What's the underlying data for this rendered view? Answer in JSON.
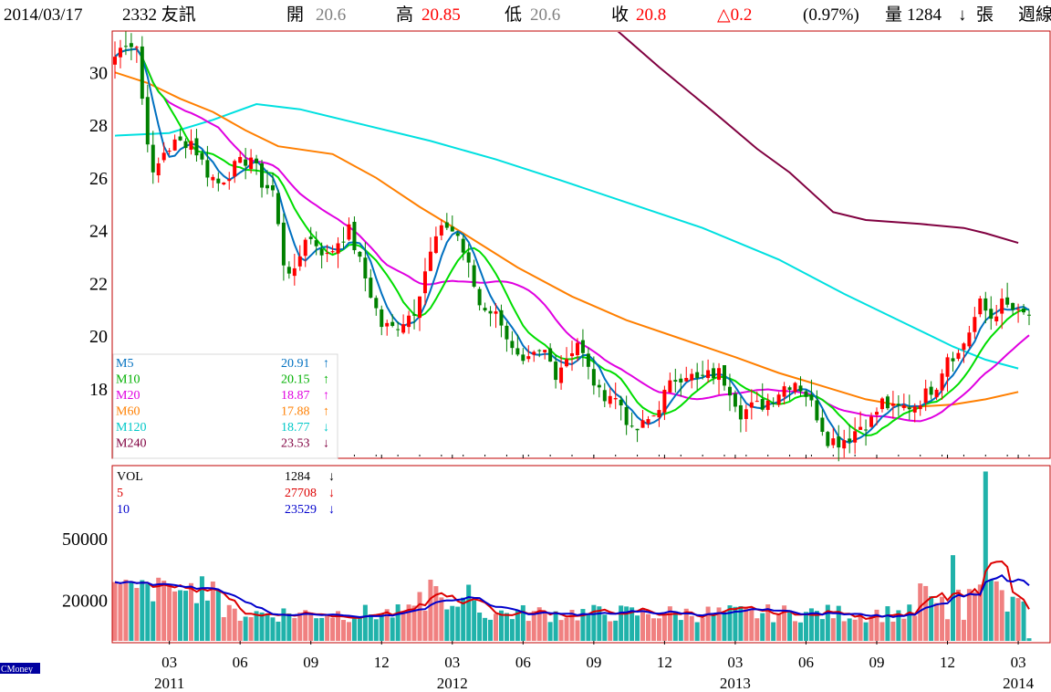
{
  "header": {
    "date": "2014/03/17",
    "stock": "2332 友訊",
    "open_label": "開",
    "open": "20.6",
    "high_label": "高",
    "high": "20.85",
    "low_label": "低",
    "low": "20.6",
    "close_label": "收",
    "close": "20.8",
    "change": "△0.2",
    "change_pct": "(0.97%)",
    "volume_label": "量",
    "volume": "1284",
    "volume_arrow": "↓",
    "unit": "張",
    "period": "週線"
  },
  "colors": {
    "up": "#ff0000",
    "down": "#008000",
    "m5": "#0070c0",
    "m10": "#00dd00",
    "m20": "#e000e0",
    "m60": "#ff7f00",
    "m120": "#00e0e0",
    "m240": "#800040",
    "vol_up": "#f08080",
    "vol_down": "#20b2aa",
    "vol5": "#dd0000",
    "vol10": "#0000cc"
  },
  "legend": [
    {
      "name": "M5",
      "value": "20.91",
      "arrow": "↑",
      "color": "#0070c0"
    },
    {
      "name": "M10",
      "value": "20.15",
      "arrow": "↑",
      "color": "#00b000"
    },
    {
      "name": "M20",
      "value": "18.87",
      "arrow": "↑",
      "color": "#e000e0"
    },
    {
      "name": "M60",
      "value": "17.88",
      "arrow": "↑",
      "color": "#ff7f00"
    },
    {
      "name": "M120",
      "value": "18.77",
      "arrow": "↓",
      "color": "#00c8c8"
    },
    {
      "name": "M240",
      "value": "23.53",
      "arrow": "↓",
      "color": "#800040"
    }
  ],
  "vol_legend": [
    {
      "name": "VOL",
      "value": "1284",
      "arrow": "↓",
      "color": "#000000"
    },
    {
      "name": "5",
      "value": "27708",
      "arrow": "↓",
      "color": "#dd0000"
    },
    {
      "name": "10",
      "value": "23529",
      "arrow": "↓",
      "color": "#0000cc"
    }
  ],
  "watermark": "CMoney",
  "chart_data": {
    "type": "candlestick",
    "price_yticks": [
      "30",
      "28",
      "26",
      "24",
      "22",
      "20",
      "18"
    ],
    "volume_yticks": [
      "50000",
      "20000"
    ],
    "month_ticks": [
      "03",
      "06",
      "09",
      "12",
      "03",
      "06",
      "09",
      "12",
      "03",
      "06",
      "09",
      "12",
      "03"
    ],
    "year_labels": [
      "2011",
      "2012",
      "2013",
      "2014"
    ],
    "price_ylim": [
      15.5,
      31.5
    ],
    "volume_ylim": [
      0,
      85000
    ],
    "weeks": 169,
    "price_anchors": [
      [
        0,
        30.6
      ],
      [
        2,
        31.2
      ],
      [
        4,
        31.0
      ],
      [
        5,
        29.0
      ],
      [
        7,
        26.0
      ],
      [
        9,
        27.0
      ],
      [
        11,
        27.3
      ],
      [
        14,
        27.4
      ],
      [
        17,
        26.2
      ],
      [
        19,
        25.8
      ],
      [
        22,
        26.4
      ],
      [
        25,
        26.8
      ],
      [
        27,
        25.8
      ],
      [
        29,
        25.5
      ],
      [
        31,
        22.8
      ],
      [
        33,
        22.3
      ],
      [
        35,
        23.8
      ],
      [
        37,
        23.5
      ],
      [
        39,
        23.0
      ],
      [
        41,
        23.6
      ],
      [
        43,
        24.0
      ],
      [
        45,
        22.8
      ],
      [
        47,
        21.6
      ],
      [
        49,
        20.4
      ],
      [
        51,
        20.3
      ],
      [
        53,
        20.6
      ],
      [
        55,
        21.0
      ],
      [
        57,
        22.5
      ],
      [
        59,
        23.7
      ],
      [
        61,
        24.2
      ],
      [
        63,
        23.8
      ],
      [
        65,
        22.6
      ],
      [
        67,
        21.2
      ],
      [
        69,
        21.0
      ],
      [
        71,
        20.6
      ],
      [
        73,
        19.4
      ],
      [
        75,
        18.8
      ],
      [
        77,
        19.2
      ],
      [
        79,
        19.4
      ],
      [
        81,
        18.6
      ],
      [
        83,
        19.2
      ],
      [
        85,
        19.8
      ],
      [
        87,
        18.7
      ],
      [
        89,
        17.8
      ],
      [
        91,
        17.8
      ],
      [
        93,
        17.4
      ],
      [
        95,
        16.3
      ],
      [
        97,
        16.6
      ],
      [
        99,
        17.0
      ],
      [
        101,
        17.8
      ],
      [
        103,
        18.4
      ],
      [
        105,
        18.6
      ],
      [
        107,
        18.3
      ],
      [
        109,
        18.5
      ],
      [
        111,
        18.6
      ],
      [
        113,
        18.0
      ],
      [
        115,
        17.1
      ],
      [
        117,
        17.3
      ],
      [
        119,
        17.4
      ],
      [
        121,
        17.7
      ],
      [
        123,
        18.1
      ],
      [
        125,
        18.3
      ],
      [
        127,
        17.8
      ],
      [
        129,
        17.0
      ],
      [
        131,
        16.1
      ],
      [
        133,
        16.0
      ],
      [
        135,
        16.2
      ],
      [
        137,
        16.6
      ],
      [
        139,
        16.8
      ],
      [
        141,
        17.5
      ],
      [
        143,
        17.2
      ],
      [
        145,
        17.3
      ],
      [
        147,
        17.4
      ],
      [
        149,
        17.8
      ],
      [
        151,
        18.2
      ],
      [
        153,
        19.3
      ],
      [
        155,
        19.3
      ],
      [
        157,
        20.2
      ],
      [
        159,
        21.2
      ],
      [
        161,
        20.7
      ],
      [
        163,
        21.2
      ],
      [
        165,
        21.0
      ],
      [
        166,
        20.8
      ]
    ],
    "ma_lines": [
      {
        "name": "M120",
        "points": [
          [
            0,
            27.6
          ],
          [
            10,
            27.7
          ],
          [
            18,
            28.2
          ],
          [
            26,
            28.8
          ],
          [
            34,
            28.6
          ],
          [
            44,
            28.1
          ],
          [
            58,
            27.4
          ],
          [
            70,
            26.7
          ],
          [
            82,
            25.9
          ],
          [
            95,
            25.0
          ],
          [
            108,
            24.1
          ],
          [
            122,
            22.9
          ],
          [
            134,
            21.6
          ],
          [
            146,
            20.4
          ],
          [
            154,
            19.6
          ],
          [
            160,
            19.1
          ],
          [
            166,
            18.77
          ]
        ]
      },
      {
        "name": "M240",
        "points": [
          [
            72,
            35.5
          ],
          [
            80,
            34.1
          ],
          [
            90,
            32.0
          ],
          [
            100,
            30.2
          ],
          [
            110,
            28.5
          ],
          [
            118,
            27.1
          ],
          [
            124,
            26.2
          ],
          [
            132,
            24.7
          ],
          [
            138,
            24.4
          ],
          [
            148,
            24.25
          ],
          [
            156,
            24.1
          ],
          [
            160,
            23.9
          ],
          [
            166,
            23.53
          ]
        ]
      },
      {
        "name": "M60",
        "points": [
          [
            0,
            30.0
          ],
          [
            6,
            29.6
          ],
          [
            12,
            29.0
          ],
          [
            18,
            28.5
          ],
          [
            24,
            27.8
          ],
          [
            30,
            27.2
          ],
          [
            40,
            26.9
          ],
          [
            48,
            26.0
          ],
          [
            56,
            24.9
          ],
          [
            64,
            23.9
          ],
          [
            74,
            22.6
          ],
          [
            84,
            21.5
          ],
          [
            94,
            20.6
          ],
          [
            104,
            19.9
          ],
          [
            114,
            19.2
          ],
          [
            122,
            18.6
          ],
          [
            130,
            18.1
          ],
          [
            138,
            17.6
          ],
          [
            146,
            17.3
          ],
          [
            154,
            17.4
          ],
          [
            160,
            17.6
          ],
          [
            166,
            17.88
          ]
        ]
      }
    ],
    "volume_ma": [
      "5",
      "10"
    ]
  }
}
